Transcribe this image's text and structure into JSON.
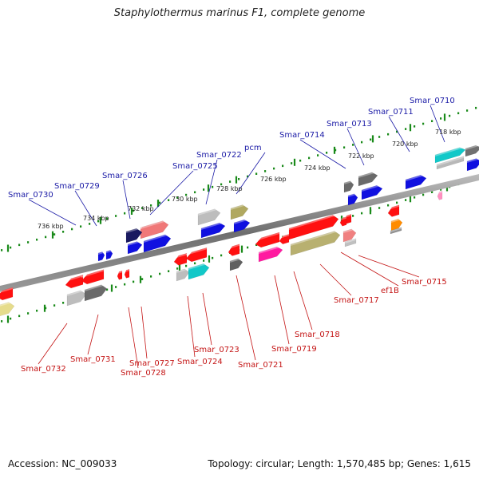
{
  "title": "Staphylothermus marinus F1, complete genome",
  "footer": {
    "accession": "Accession: NC_009033",
    "summary": "Topology: circular; Length: 1,570,485 bp; Genes: 1,615"
  },
  "colors": {
    "backbone": "#808080",
    "tick": "#1a8a1a",
    "top_label": "#1a1aa6",
    "bottom_label": "#c41414"
  },
  "ticks": [
    "718 kbp",
    "720 kbp",
    "722 kbp",
    "724 kbp",
    "726 kbp",
    "728 kbp",
    "730 kbp",
    "732 kbp",
    "734 kbp",
    "736 kbp"
  ],
  "top_labels": [
    "Smar_0710",
    "Smar_0711",
    "Smar_0713",
    "Smar_0714",
    "pcm",
    "Smar_0722",
    "Smar_0725",
    "Smar_0726",
    "Smar_0729",
    "Smar_0730"
  ],
  "bottom_labels": [
    "Smar_0715",
    "ef1B",
    "Smar_0717",
    "Smar_0718",
    "Smar_0719",
    "Smar_0721",
    "Smar_0723",
    "Smar_0724",
    "Smar_0727",
    "Smar_0728",
    "Smar_0731",
    "Smar_0732"
  ]
}
